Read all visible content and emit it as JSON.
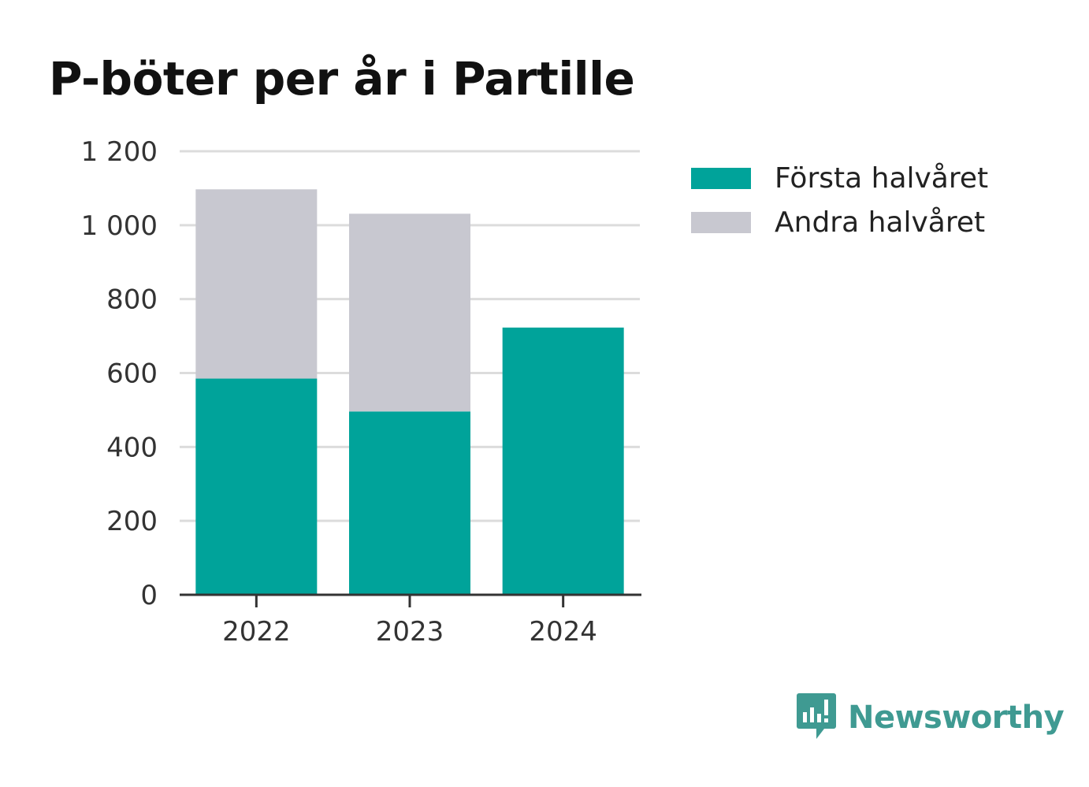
{
  "title": "P-böter per år i Partille",
  "colors": {
    "first_half": "#00a39a",
    "second_half": "#c8c8d0",
    "brand": "#3f9a92"
  },
  "legend": [
    {
      "label": "Första halvåret",
      "color": "#00a39a"
    },
    {
      "label": "Andra halvåret",
      "color": "#c8c8d0"
    }
  ],
  "brand": {
    "name": "Newsworthy",
    "icon": "newsworthy-logo-icon"
  },
  "chart_data": {
    "type": "bar",
    "stacked": true,
    "categories": [
      "2022",
      "2023",
      "2024"
    ],
    "series": [
      {
        "name": "Första halvåret",
        "values": [
          585,
          496,
          723
        ]
      },
      {
        "name": "Andra halvåret",
        "values": [
          512,
          535,
          0
        ]
      }
    ],
    "ylim": [
      0,
      1200
    ],
    "yticks": [
      0,
      200,
      400,
      600,
      800,
      1000,
      1200
    ],
    "ytick_labels": [
      "0",
      "200",
      "400",
      "600",
      "800",
      "1 000",
      "1 200"
    ],
    "grid": true,
    "legend_position": "right",
    "xlabel": "",
    "ylabel": ""
  }
}
